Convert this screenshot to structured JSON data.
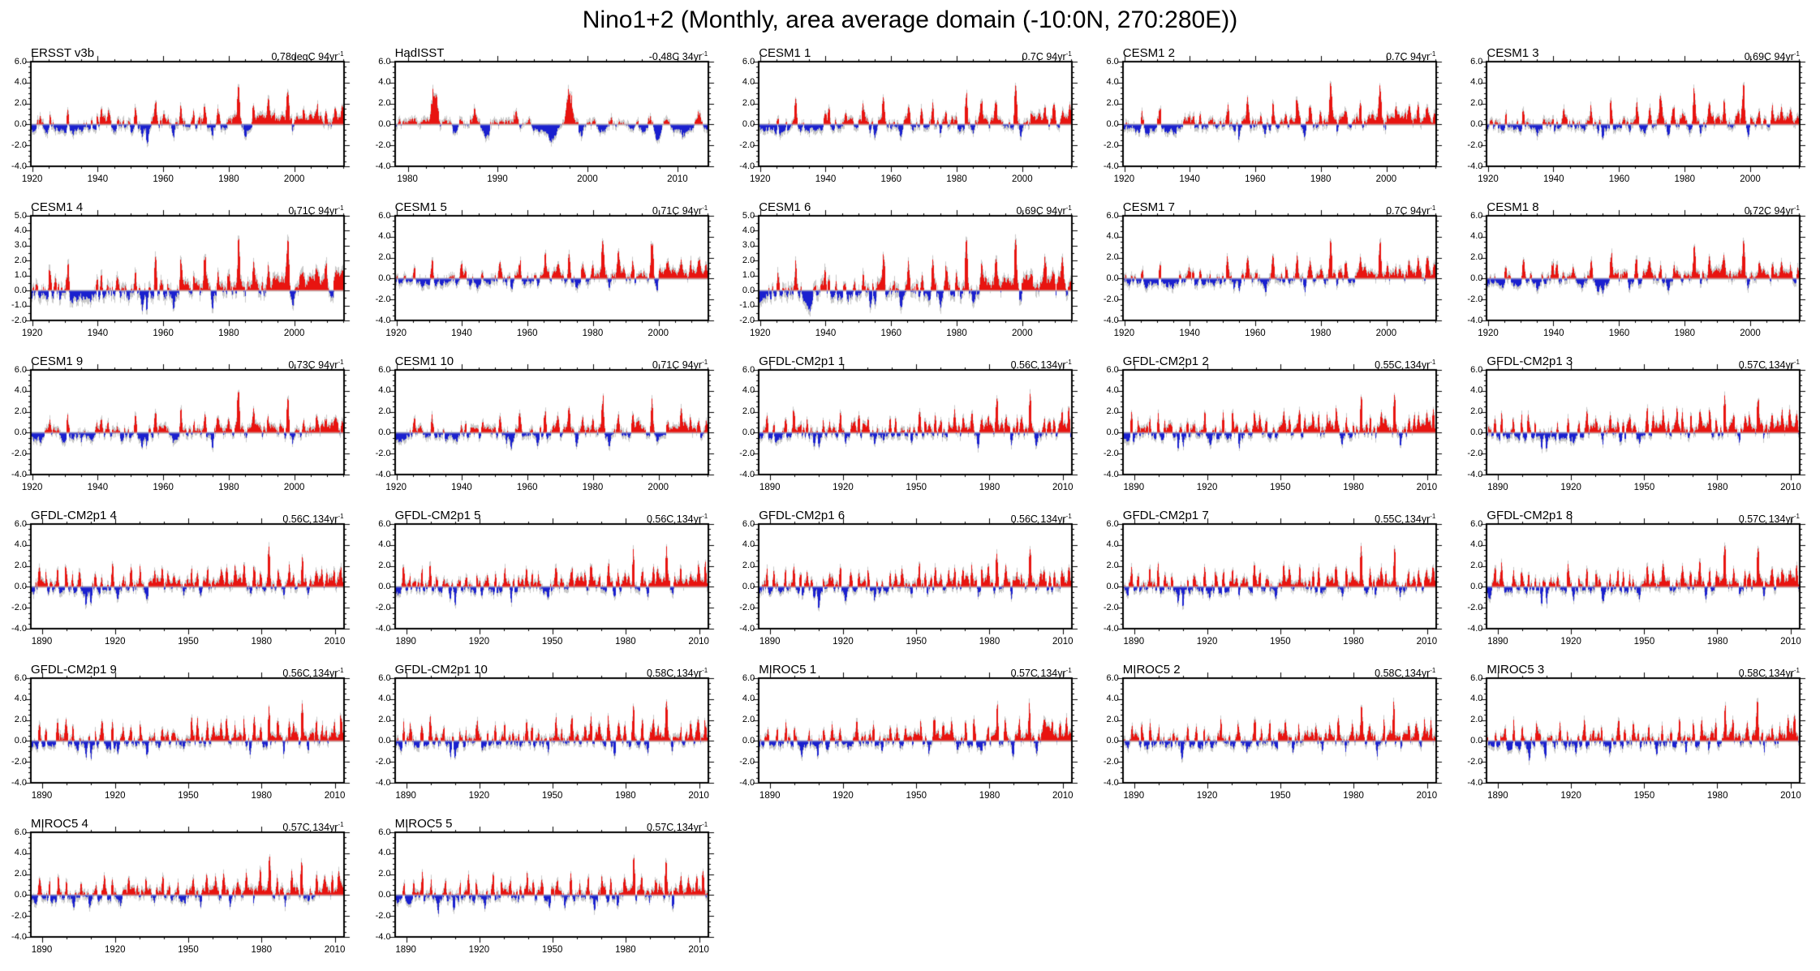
{
  "chart_data": {
    "type": "bar",
    "title": "Nino1+2 (Monthly, area average domain (-10:0N, 270:280E))",
    "subtitle": "",
    "ylabel": "",
    "xlabel": "",
    "units": "degC anomaly",
    "legend": "none",
    "grid": "off",
    "trend_exponent": "-1",
    "colors": {
      "positive": "#e81410",
      "negative": "#1a20cf",
      "raw": "#c9c9c9",
      "zero_line": "#c4c4c4",
      "frame": "#000000"
    },
    "axis_presets": {
      "A": {
        "y_ticks": [
          6.0,
          4.0,
          2.0,
          0.0,
          -2.0,
          -4.0
        ],
        "y_top": 6.0,
        "y_bottom": -4.0,
        "y_minor": 0.5
      },
      "B": {
        "y_ticks": [
          5.0,
          4.0,
          3.0,
          2.0,
          1.0,
          0.0,
          -1.0,
          -2.0
        ],
        "y_top": 5.0,
        "y_bottom": -2.0,
        "y_minor": 0.5
      }
    },
    "x_presets": {
      "obs20": {
        "start": 1919.6,
        "end": 2015.2,
        "ticks": [
          1920,
          1940,
          1960,
          1980,
          2000
        ],
        "minor": 5
      },
      "had": {
        "start": 1978.6,
        "end": 2013.4,
        "ticks": [
          1980,
          1990,
          2000,
          2010
        ],
        "minor": 2
      },
      "long": {
        "start": 1885.5,
        "end": 2013.8,
        "ticks": [
          1890,
          1920,
          1950,
          1980,
          2010
        ],
        "minor": 10
      }
    },
    "peak_sets": {
      "obs": [
        [
          1925.3,
          1.2
        ],
        [
          1930.8,
          1.7
        ],
        [
          1935.0,
          -0.6
        ],
        [
          1939.7,
          1.1
        ],
        [
          1941.0,
          1.0
        ],
        [
          1943.0,
          0.7
        ],
        [
          1946.0,
          0.6
        ],
        [
          1951.4,
          1.7
        ],
        [
          1953.5,
          -0.9
        ],
        [
          1955.0,
          -1.3
        ],
        [
          1957.6,
          2.2
        ],
        [
          1963.0,
          -0.8
        ],
        [
          1965.3,
          1.9
        ],
        [
          1969.2,
          1.2
        ],
        [
          1972.6,
          2.1
        ],
        [
          1975.0,
          -1.0
        ],
        [
          1976.7,
          1.4
        ],
        [
          1979.8,
          0.7
        ],
        [
          1982.9,
          4.1
        ],
        [
          1985.0,
          -0.8
        ],
        [
          1987.5,
          1.6
        ],
        [
          1992.0,
          1.7
        ],
        [
          1997.9,
          4.0
        ],
        [
          1999.5,
          -0.9
        ],
        [
          2002.8,
          1.0
        ],
        [
          2006.8,
          1.3
        ],
        [
          2009.6,
          1.2
        ],
        [
          2012.3,
          1.1
        ],
        [
          2014.5,
          0.9
        ]
      ],
      "had": [
        [
          1982.9,
          4.2
        ],
        [
          1985.2,
          -0.9
        ],
        [
          1987.4,
          1.3
        ],
        [
          1988.7,
          -1.3
        ],
        [
          1991.9,
          1.4
        ],
        [
          1993.3,
          0.8
        ],
        [
          1996.0,
          -0.8
        ],
        [
          1997.9,
          4.1
        ],
        [
          1999.3,
          -1.0
        ],
        [
          2002.5,
          0.6
        ],
        [
          2006.8,
          1.0
        ],
        [
          2007.8,
          -1.2
        ],
        [
          2008.6,
          0.7
        ],
        [
          2010.5,
          -0.9
        ],
        [
          2012.2,
          0.8
        ]
      ],
      "long": [
        [
          1888.8,
          1.6
        ],
        [
          1891.5,
          1.4
        ],
        [
          1896.3,
          1.7
        ],
        [
          1899.7,
          1.8
        ],
        [
          1902.5,
          1.2
        ],
        [
          1905.3,
          1.0
        ],
        [
          1908.0,
          -1.4
        ],
        [
          1910.0,
          -1.6
        ],
        [
          1911.8,
          0.9
        ],
        [
          1914.5,
          1.1
        ],
        [
          1918.8,
          1.9
        ],
        [
          1921.0,
          -0.9
        ],
        [
          1923.2,
          0.9
        ],
        [
          1926.4,
          1.6
        ],
        [
          1930.2,
          1.3
        ],
        [
          1933.0,
          -1.0
        ],
        [
          1936.0,
          0.8
        ],
        [
          1939.2,
          1.4
        ],
        [
          1941.5,
          1.2
        ],
        [
          1944.0,
          0.9
        ],
        [
          1948.0,
          -0.8
        ],
        [
          1951.2,
          1.8
        ],
        [
          1953.6,
          1.3
        ],
        [
          1957.7,
          1.7
        ],
        [
          1960.0,
          0.7
        ],
        [
          1963.3,
          1.1
        ],
        [
          1965.6,
          1.8
        ],
        [
          1969.1,
          1.2
        ],
        [
          1972.7,
          2.0
        ],
        [
          1975.2,
          -1.1
        ],
        [
          1976.8,
          1.5
        ],
        [
          1979.5,
          0.9
        ],
        [
          1982.9,
          4.1
        ],
        [
          1986.6,
          1.6
        ],
        [
          1989.0,
          -1.0
        ],
        [
          1991.2,
          1.3
        ],
        [
          1993.0,
          0.9
        ],
        [
          1996.6,
          3.8
        ],
        [
          1999.0,
          -1.0
        ],
        [
          2002.3,
          1.2
        ],
        [
          2004.6,
          0.9
        ],
        [
          2006.4,
          1.1
        ],
        [
          2009.6,
          1.3
        ],
        [
          2012.4,
          1.8
        ]
      ],
      "long2": [
        [
          1889.0,
          1.3
        ],
        [
          1893.0,
          1.5
        ],
        [
          1896.5,
          1.9
        ],
        [
          1900.0,
          1.4
        ],
        [
          1903.0,
          -1.2
        ],
        [
          1906.0,
          1.0
        ],
        [
          1909.5,
          -1.5
        ],
        [
          1912.0,
          1.1
        ],
        [
          1915.4,
          1.6
        ],
        [
          1918.6,
          1.3
        ],
        [
          1922.0,
          -0.9
        ],
        [
          1925.5,
          1.7
        ],
        [
          1929.0,
          1.1
        ],
        [
          1932.5,
          1.4
        ],
        [
          1936.0,
          -1.0
        ],
        [
          1939.4,
          1.6
        ],
        [
          1942.0,
          1.0
        ],
        [
          1945.5,
          1.2
        ],
        [
          1948.5,
          -0.9
        ],
        [
          1951.8,
          1.5
        ],
        [
          1955.0,
          -1.1
        ],
        [
          1957.3,
          1.8
        ],
        [
          1961.0,
          1.0
        ],
        [
          1964.4,
          1.5
        ],
        [
          1967.0,
          -0.8
        ],
        [
          1970.2,
          1.3
        ],
        [
          1973.5,
          1.9
        ],
        [
          1976.5,
          -1.0
        ],
        [
          1979.3,
          1.4
        ],
        [
          1983.1,
          3.9
        ],
        [
          1986.3,
          1.4
        ],
        [
          1989.5,
          -1.1
        ],
        [
          1992.2,
          1.6
        ],
        [
          1996.3,
          4.0
        ],
        [
          1999.2,
          -1.2
        ],
        [
          2002.4,
          1.3
        ],
        [
          2005.5,
          1.1
        ],
        [
          2008.8,
          1.7
        ],
        [
          2011.5,
          1.9
        ]
      ]
    },
    "panels": [
      {
        "name": "ERSST v3b",
        "trend": "0.78degC 94yr",
        "x": "obs20",
        "axis": "A",
        "peaks": "obs",
        "seed": 1,
        "bias": 0
      },
      {
        "name": "HadISST",
        "trend": "-0.48C 34yr",
        "x": "had",
        "axis": "A",
        "peaks": "had",
        "seed": 2,
        "bias": -0.2
      },
      {
        "name": "CESM1 1",
        "trend": "0.7C 94yr",
        "x": "obs20",
        "axis": "A",
        "peaks": "obs",
        "seed": 3,
        "bias": 0
      },
      {
        "name": "CESM1 2",
        "trend": "0.7C 94yr",
        "x": "obs20",
        "axis": "A",
        "peaks": "obs",
        "seed": 4,
        "bias": 0
      },
      {
        "name": "CESM1 3",
        "trend": "0.69C 94yr",
        "x": "obs20",
        "axis": "A",
        "peaks": "obs",
        "seed": 5,
        "bias": 0
      },
      {
        "name": "CESM1 4",
        "trend": "0.71C 94yr",
        "x": "obs20",
        "axis": "B",
        "peaks": "obs",
        "seed": 6,
        "bias": 0
      },
      {
        "name": "CESM1 5",
        "trend": "0.71C 94yr",
        "x": "obs20",
        "axis": "A",
        "peaks": "obs",
        "seed": 7,
        "bias": 0
      },
      {
        "name": "CESM1 6",
        "trend": "0.69C 94yr",
        "x": "obs20",
        "axis": "B",
        "peaks": "obs",
        "seed": 8,
        "bias": 0
      },
      {
        "name": "CESM1 7",
        "trend": "0.7C 94yr",
        "x": "obs20",
        "axis": "A",
        "peaks": "obs",
        "seed": 9,
        "bias": 0
      },
      {
        "name": "CESM1 8",
        "trend": "0.72C 94yr",
        "x": "obs20",
        "axis": "A",
        "peaks": "obs",
        "seed": 10,
        "bias": 0
      },
      {
        "name": "CESM1 9",
        "trend": "0.73C 94yr",
        "x": "obs20",
        "axis": "A",
        "peaks": "obs",
        "seed": 11,
        "bias": 0
      },
      {
        "name": "CESM1 10",
        "trend": "0.71C 94yr",
        "x": "obs20",
        "axis": "A",
        "peaks": "obs",
        "seed": 12,
        "bias": 0
      },
      {
        "name": "GFDL-CM2p1 1",
        "trend": "0.56C 134yr",
        "x": "long",
        "axis": "A",
        "peaks": "long",
        "seed": 13,
        "bias": 0
      },
      {
        "name": "GFDL-CM2p1 2",
        "trend": "0.55C 134yr",
        "x": "long",
        "axis": "A",
        "peaks": "long",
        "seed": 14,
        "bias": 0
      },
      {
        "name": "GFDL-CM2p1 3",
        "trend": "0.57C 134yr",
        "x": "long",
        "axis": "A",
        "peaks": "long",
        "seed": 15,
        "bias": 0
      },
      {
        "name": "GFDL-CM2p1 4",
        "trend": "0.56C 134yr",
        "x": "long",
        "axis": "A",
        "peaks": "long",
        "seed": 16,
        "bias": 0
      },
      {
        "name": "GFDL-CM2p1 5",
        "trend": "0.56C 134yr",
        "x": "long",
        "axis": "A",
        "peaks": "long",
        "seed": 17,
        "bias": 0
      },
      {
        "name": "GFDL-CM2p1 6",
        "trend": "0.56C 134yr",
        "x": "long",
        "axis": "A",
        "peaks": "long",
        "seed": 18,
        "bias": 0
      },
      {
        "name": "GFDL-CM2p1 7",
        "trend": "0.55C 134yr",
        "x": "long",
        "axis": "A",
        "peaks": "long",
        "seed": 19,
        "bias": 0
      },
      {
        "name": "GFDL-CM2p1 8",
        "trend": "0.57C 134yr",
        "x": "long",
        "axis": "A",
        "peaks": "long",
        "seed": 20,
        "bias": 0
      },
      {
        "name": "GFDL-CM2p1 9",
        "trend": "0.56C 134yr",
        "x": "long",
        "axis": "A",
        "peaks": "long",
        "seed": 21,
        "bias": 0
      },
      {
        "name": "GFDL-CM2p1 10",
        "trend": "0.58C 134yr",
        "x": "long",
        "axis": "A",
        "peaks": "long",
        "seed": 22,
        "bias": 0
      },
      {
        "name": "MIROC5 1",
        "trend": "0.57C 134yr",
        "x": "long",
        "axis": "A",
        "peaks": "long2",
        "seed": 23,
        "bias": 0
      },
      {
        "name": "MIROC5 2",
        "trend": "0.58C 134yr",
        "x": "long",
        "axis": "A",
        "peaks": "long2",
        "seed": 24,
        "bias": 0
      },
      {
        "name": "MIROC5 3",
        "trend": "0.58C 134yr",
        "x": "long",
        "axis": "A",
        "peaks": "long2",
        "seed": 25,
        "bias": 0
      },
      {
        "name": "MIROC5 4",
        "trend": "0.57C 134yr",
        "x": "long",
        "axis": "A",
        "peaks": "long2",
        "seed": 26,
        "bias": 0
      },
      {
        "name": "MIROC5 5",
        "trend": "0.57C 134yr",
        "x": "long",
        "axis": "A",
        "peaks": "long2",
        "seed": 27,
        "bias": 0
      }
    ]
  }
}
